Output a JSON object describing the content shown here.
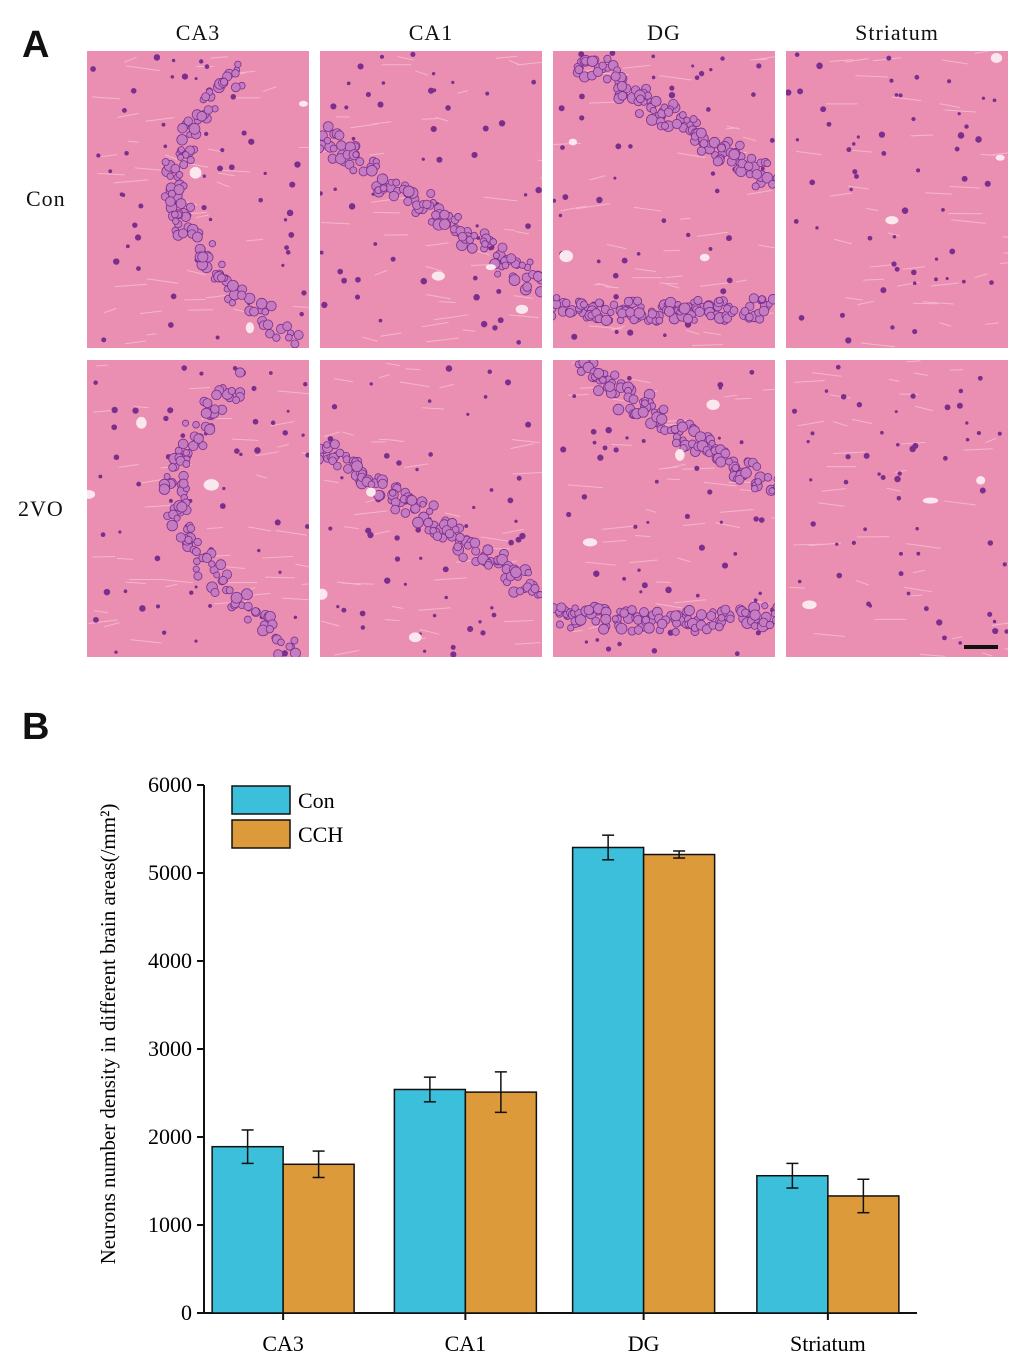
{
  "panel_a": {
    "letter": "A",
    "columns": [
      "CA3",
      "CA1",
      "DG",
      "Striatum"
    ],
    "rows": [
      "Con",
      "2VO"
    ]
  },
  "panel_b": {
    "letter": "B"
  },
  "colors": {
    "tissue": "#ea8fb1",
    "nucleus": "#7a2f8f",
    "cell_body": "#c47bc0",
    "con_bar": "#3bbfdb",
    "cch_bar": "#dc9a3a"
  },
  "chart_data": {
    "type": "bar",
    "categories": [
      "CA3",
      "CA1",
      "DG",
      "Striatum"
    ],
    "series": [
      {
        "name": "Con",
        "values": [
          1890,
          2540,
          5290,
          1560
        ],
        "errors": [
          190,
          140,
          140,
          140
        ]
      },
      {
        "name": "CCH",
        "values": [
          1690,
          2510,
          5210,
          1330
        ],
        "errors": [
          150,
          230,
          40,
          190
        ]
      }
    ],
    "ylabel": "Neurons number density in different brain areas(/mm²)",
    "ylim": [
      0,
      6000
    ],
    "yticks": [
      "0",
      "1000",
      "2000",
      "3000",
      "4000",
      "5000",
      "6000"
    ],
    "legend_position": "top-left",
    "grid": false
  }
}
